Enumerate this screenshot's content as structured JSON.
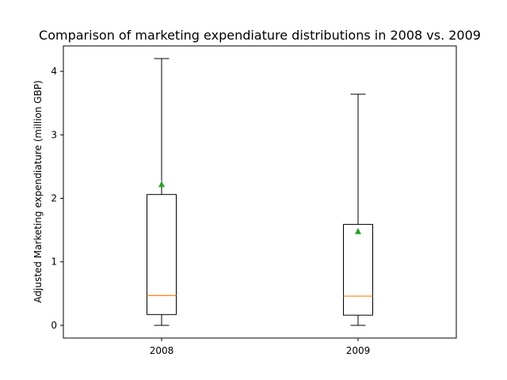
{
  "chart_data": {
    "type": "box",
    "title": "Comparison of marketing expendiature distributions in 2008 vs. 2009",
    "xlabel": "",
    "ylabel": "Adjusted Marketing expendiature (million GBP)",
    "ylim": [
      -0.2,
      4.4
    ],
    "yticks": [
      "0",
      "1",
      "2",
      "3",
      "4"
    ],
    "categories": [
      "2008",
      "2009"
    ],
    "boxes": [
      {
        "category": "2008",
        "whisker_low": 0.0,
        "q1": 0.17,
        "median": 0.47,
        "q3": 2.06,
        "whisker_high": 4.2,
        "mean": 2.22
      },
      {
        "category": "2009",
        "whisker_low": 0.0,
        "q1": 0.16,
        "median": 0.46,
        "q3": 1.59,
        "whisker_high": 3.64,
        "mean": 1.48
      }
    ],
    "grid": false,
    "colors": {
      "box": "#000000",
      "median": "#ff7f0e",
      "mean": "#2ca02c"
    }
  }
}
